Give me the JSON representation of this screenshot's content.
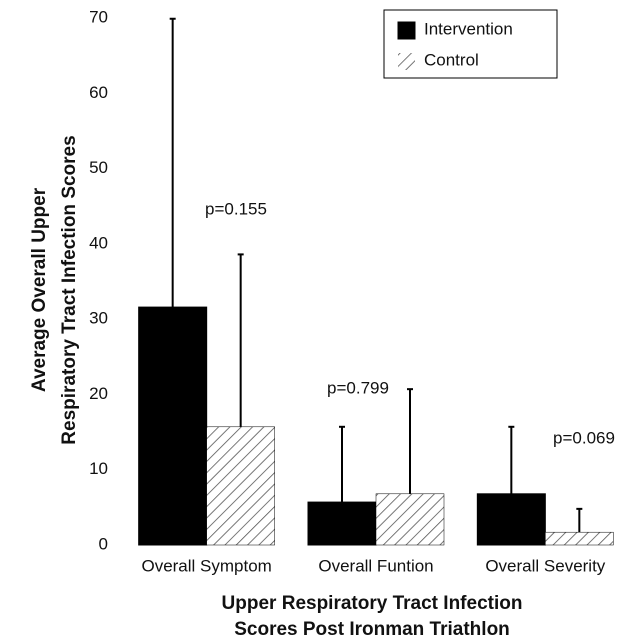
{
  "chart_data": {
    "type": "bar",
    "xlabel": [
      "Upper Respiratory Tract Infection",
      "Scores Post Ironman Triathlon"
    ],
    "ylabel": [
      "Average Overall Upper",
      "Respiratory Tract Infection Scores"
    ],
    "categories": [
      "Overall Symptom",
      "Overall Funtion",
      "Overall Severity"
    ],
    "series": [
      {
        "name": "Intervention",
        "color": "#000000",
        "hatch": false,
        "values": [
          31.6,
          5.7,
          6.8
        ],
        "errors": [
          38.3,
          10.0,
          8.9
        ]
      },
      {
        "name": "Control",
        "color": "#555555",
        "hatch": true,
        "values": [
          15.7,
          6.8,
          1.7
        ],
        "errors": [
          22.9,
          13.9,
          3.1
        ]
      }
    ],
    "annotations": [
      "p=0.155",
      "p=0.799",
      "p=0.069"
    ],
    "ylim": [
      0,
      70
    ],
    "yticks": [
      0,
      10,
      20,
      30,
      40,
      50,
      60,
      70
    ],
    "grid": false,
    "legend": "upper right"
  }
}
